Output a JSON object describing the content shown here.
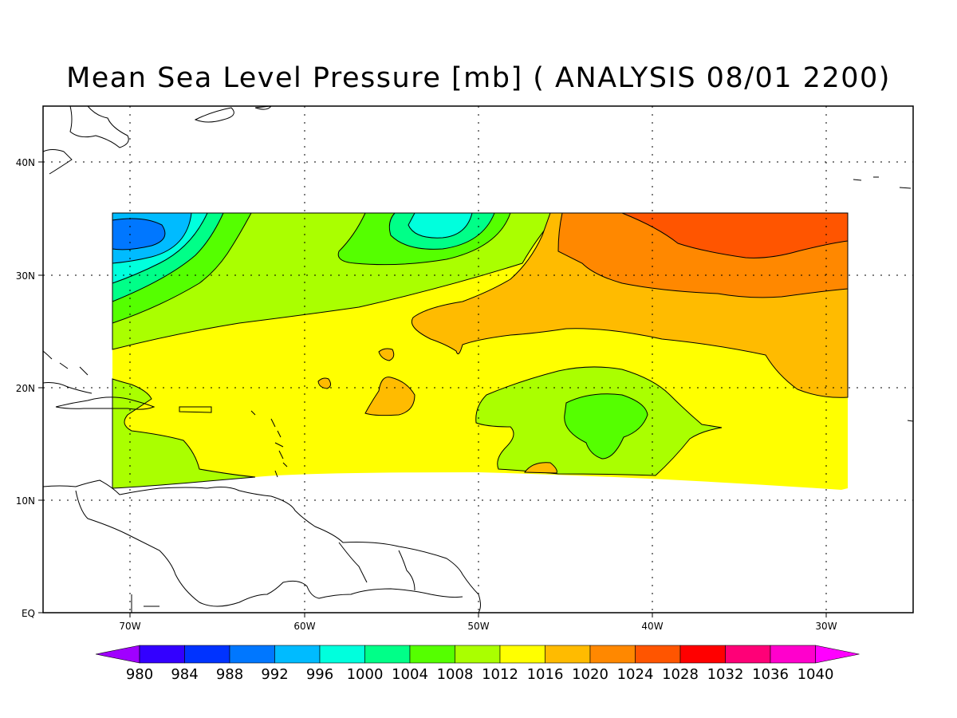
{
  "title": "Mean Sea Level Pressure [mb] ( ANALYSIS 08/01 2200)",
  "map": {
    "lat_labels": [
      "EQ",
      "10N",
      "20N",
      "30N",
      "40N"
    ],
    "lon_labels": [
      "70W",
      "60W",
      "50W",
      "40W",
      "30W"
    ]
  },
  "colorbar": {
    "levels": [
      "980",
      "984",
      "988",
      "992",
      "996",
      "1000",
      "1004",
      "1008",
      "1012",
      "1016",
      "1020",
      "1024",
      "1028",
      "1032",
      "1036",
      "1040"
    ],
    "colors": [
      "#a000ff",
      "#3300ff",
      "#0033ff",
      "#0077ff",
      "#00bbff",
      "#00ffdd",
      "#00ff88",
      "#55ff00",
      "#aaff00",
      "#ffff00",
      "#ffbb00",
      "#ff8800",
      "#ff5500",
      "#ff0000",
      "#ff0077",
      "#ff00cc",
      "#ff00ff"
    ]
  }
}
